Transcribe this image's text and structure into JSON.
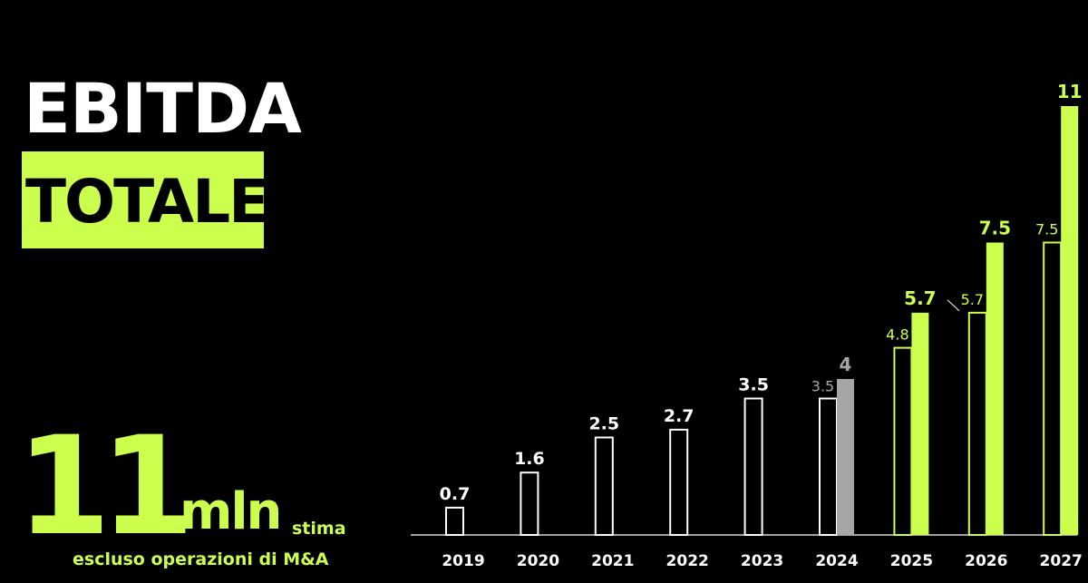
{
  "headline": {
    "line1": "EBITDA",
    "line2": "TOTALE"
  },
  "highlight": {
    "value": "11",
    "unit": "mln",
    "qualifier": "stima",
    "note": "escluso operazioni di M&A"
  },
  "colors": {
    "background": "#000000",
    "accent": "#CCFF4D",
    "text": "#FFFFFF",
    "muted": "#A6A6A6"
  },
  "chart_data": {
    "type": "bar",
    "title": "",
    "xlabel": "",
    "ylabel": "",
    "ylim": [
      0,
      11
    ],
    "grid": false,
    "legend": "none",
    "categories": [
      "2019",
      "2020",
      "2021",
      "2022",
      "2023",
      "2024",
      "2025",
      "2026",
      "2027"
    ],
    "series": [
      {
        "values": [
          0.7,
          1.6,
          2.5,
          2.7,
          3.5,
          3.5,
          4.8,
          5.7,
          7.5
        ],
        "labels": [
          "0.7",
          "1.6",
          "2.5",
          "2.7",
          "3.5",
          "3.5",
          "4.8",
          "5.7",
          "7.5"
        ]
      },
      {
        "values": [
          null,
          null,
          null,
          null,
          null,
          4,
          5.7,
          7.5,
          11
        ],
        "labels": [
          "",
          "",
          "",
          "",
          "",
          "4",
          "5.7",
          "7.5",
          "11"
        ]
      }
    ]
  }
}
